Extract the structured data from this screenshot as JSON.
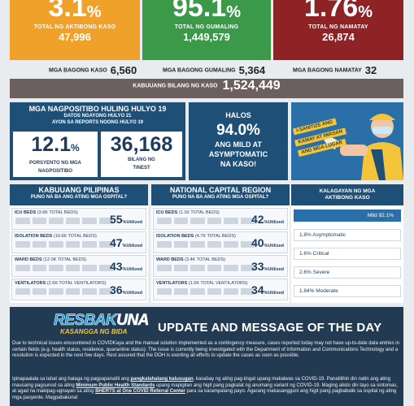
{
  "top_cards": {
    "active": {
      "rate": "3.1",
      "pct": "%",
      "label": "TOTAL NG AKTIBONG KASO",
      "count": "47,996",
      "color": "#f0a12a"
    },
    "recovered": {
      "rate": "95.1",
      "pct": "%",
      "label": "TOTAL NG GUMALING",
      "count": "1,449,579",
      "color": "#3a9a49"
    },
    "deaths": {
      "rate": "1.76",
      "pct": "%",
      "label": "TOTAL NG NAMATAY",
      "count": "26,874",
      "color": "#8e2225"
    }
  },
  "new_counts": {
    "cases_label": "MGA BAGONG KASO",
    "cases": "6,560",
    "recovered_label": "MGA BAGONG GUMALING",
    "recovered": "5,364",
    "deaths_label": "MGA BAGONG NAMATAY",
    "deaths": "32"
  },
  "total": {
    "label": "KABUUANG BILANG NG KASO",
    "value": "1,524,449"
  },
  "positivity": {
    "title": "MGA NAGPOSITIBO HULING HULYO 19",
    "subtitle1": "DATOS NGAYONG HULYO 21",
    "subtitle2": "AYON SA REPORTS NOONG HULYO 19",
    "rate": "12.1",
    "rate_pct": "%",
    "rate_label1": "PORSYENTO NG MGA",
    "rate_label2": "NAGPOSITIBO",
    "tested": "36,168",
    "tested_label1": "BILANG NG",
    "tested_label2": "TINEST"
  },
  "mild_panel": {
    "line1": "HALOS",
    "value": "94.0%",
    "line2": "ANG MILD AT",
    "line3": "ASYMPTOMATIC",
    "line4": "NA KASO!"
  },
  "artwork": {
    "tape1": "I-SANITIZE ANG",
    "tape2": "KAMAY AT IWASAN",
    "tape3": "ANG MGA LUGAR"
  },
  "hospitals": {
    "ph": {
      "title": "KABUUANG PILIPINAS",
      "subtitle": "PUNO NA BA ANG ATING MGA OSPITAL?",
      "rows": [
        {
          "label": "ICU BEDS",
          "sub": "(3.6K TOTAL BEDS)",
          "value": "55",
          "unit": "%",
          "util": "Utilized"
        },
        {
          "label": "ISOLATION BEDS",
          "sub": "(19.6K TOTAL BEDS)",
          "value": "47",
          "unit": "%",
          "util": "Utilized"
        },
        {
          "label": "WARD BEDS",
          "sub": "(12.0K TOTAL BEDS)",
          "value": "43",
          "unit": "%",
          "util": "Utilized"
        },
        {
          "label": "VENTILATORS",
          "sub": "(2.6K TOTAL VENTILATORS)",
          "value": "36",
          "unit": "%",
          "util": "Utilized"
        }
      ]
    },
    "ncr": {
      "title": "NATIONAL CAPITAL REGION",
      "subtitle": "PUNO NA BA ANG ATING MGA OSPITAL?",
      "rows": [
        {
          "label": "ICU BEDS",
          "sub": "(1.1K TOTAL BEDS)",
          "value": "42",
          "unit": "%",
          "util": "Utilized"
        },
        {
          "label": "ISOLATION BEDS",
          "sub": "(4.7K TOTAL BEDS)",
          "value": "40",
          "unit": "%",
          "util": "Utilized"
        },
        {
          "label": "WARD BEDS",
          "sub": "(3.4K TOTAL BEDS)",
          "value": "33",
          "unit": "%",
          "util": "Utilized"
        },
        {
          "label": "VENTILATORS",
          "sub": "(1.0K TOTAL VENTILATORS)",
          "value": "34",
          "unit": "%",
          "util": "Utilized"
        }
      ]
    }
  },
  "status": {
    "title1": "KALAGAYAN NG MGA",
    "title2": "AKTIBONG KASO",
    "rows": [
      {
        "text": "Mild 92.1%"
      },
      {
        "text": "1.8% Asymptomatic"
      },
      {
        "text": "1.6% Critical"
      },
      {
        "text": "2.6% Severe"
      },
      {
        "text": "1.84% Moderate"
      }
    ]
  },
  "update": {
    "logo_a": "RESBAK",
    "logo_b": "UNA",
    "logo_tagline": "KASANGGA NG BIDA",
    "title": "UPDATE AND MESSAGE OF THE DAY",
    "para1": "Due to technical issues encountered in COVIDKaya and the manual solution implemented as a contingency measure, cases reported today may not have up-to-date data entries in certain fields (e.g. health status, residence, quarantine status). The issue is currently being investigated with the Department of Information and Communications Technology and a resolution is expected in the next few days. Rest assured that the DOH is exerting all efforts to update the cases as soon as possible.",
    "p2a": "Ipinapaalala sa lahat ang halaga ng pagpapanatili ang ",
    "p2b": "pangkalahatang kalusugan",
    "p2c": ", kasabay ng ating pag-iingat upang makaiwas sa COVID-19. Panatilihin din natin ang ating mausaing pagsunod sa ating ",
    "p2d": "Minimum Public Health Standards",
    "p2e": " upang mapigilan ang higit pang pagkalat ng anumang variant ng COVID-19. Maging alisto din tayo sa sintomas, at agad na makipag-ugnayan sa ating ",
    "p2f": "BHERTS at One COVID Referral Center",
    "p2g": " para sa karampatang payo. Agarang makasangguni ang higit pang pagbabalik sa ospital ng ating mga pasyente. Magpabakuna!"
  }
}
